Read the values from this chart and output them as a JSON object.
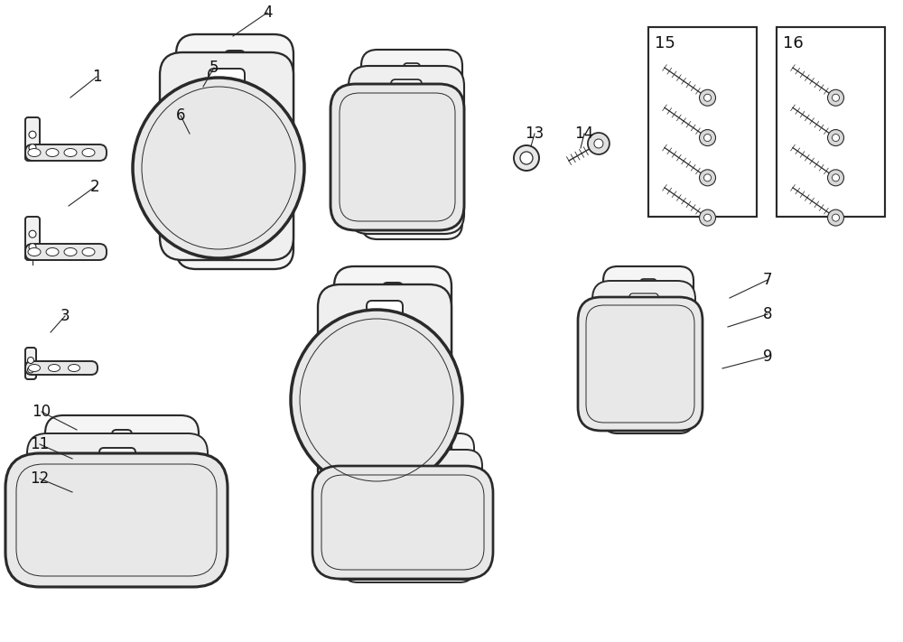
{
  "bg_color": "#ffffff",
  "line_color": "#2a2a2a",
  "line_width": 1.4,
  "label_fontsize": 12,
  "label_color": "#111111",
  "figsize": [
    10.0,
    7.11
  ],
  "dpi": 100
}
